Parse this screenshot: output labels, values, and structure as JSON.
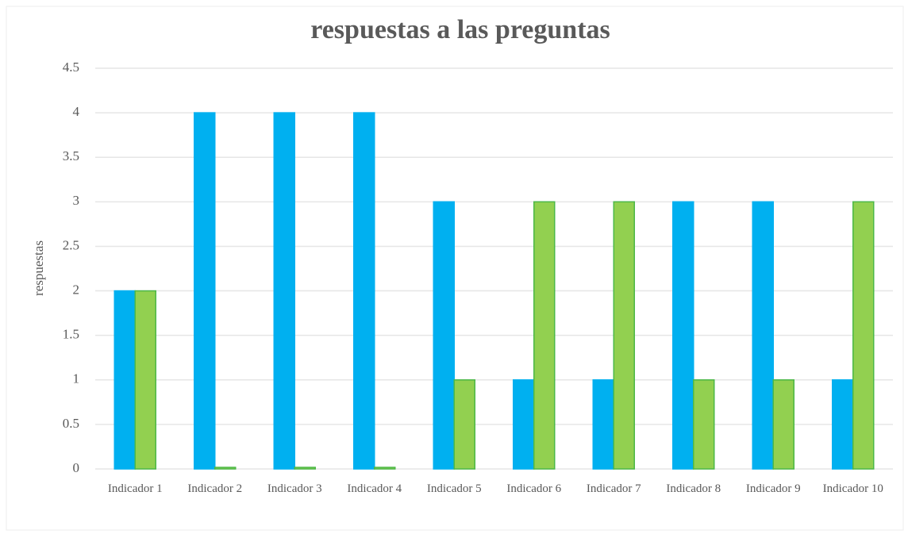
{
  "chart_data": {
    "type": "bar",
    "title": "respuestas a las preguntas",
    "y_label": "respuestas",
    "categories": [
      "Indicador 1",
      "Indicador 2",
      "Indicador 3",
      "Indicador 4",
      "Indicador 5",
      "Indicador 6",
      "Indicador 7",
      "Indicador 8",
      "Indicador 9",
      "Indicador 10"
    ],
    "series": [
      {
        "color": "#00b0f0",
        "values": [
          2,
          4,
          4,
          4,
          3,
          1,
          1,
          3,
          3,
          1
        ]
      },
      {
        "color": "#92d050",
        "values": [
          2,
          0,
          0,
          0,
          1,
          3,
          3,
          1,
          1,
          3
        ]
      }
    ],
    "ylim": [
      0,
      4.5
    ],
    "yticks": [
      0,
      0.5,
      1,
      1.5,
      2,
      2.5,
      3,
      3.5,
      4,
      4.5
    ],
    "grid": true
  }
}
